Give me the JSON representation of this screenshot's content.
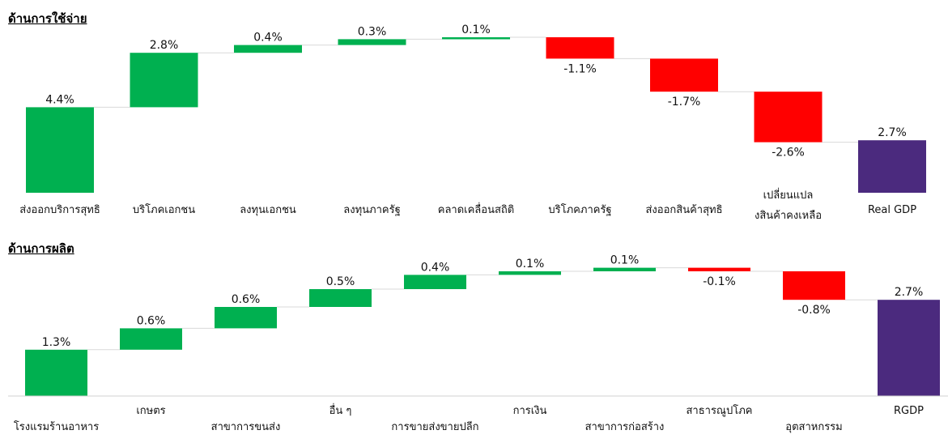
{
  "sections": [
    {
      "title": "ด้านการใช้จ่าย",
      "chart_data": {
        "type": "waterfall",
        "colors": {
          "increase": "#00B050",
          "decrease": "#FF0000",
          "total": "#4B2A7E"
        },
        "categories": [
          "ส่งออกบริการสุทธิ",
          "บริโภคเอกชน",
          "ลงทุนเอกชน",
          "ลงทุนภาครัฐ",
          "คลาดเคลื่อนสถิติ",
          "บริโภคภาครัฐ",
          "ส่งออกสินค้าสุทธิ",
          "เปลี่ยนแปลงสินค้าคงเหลือ",
          "Real GDP"
        ],
        "values": [
          4.4,
          2.8,
          0.4,
          0.3,
          0.1,
          -1.1,
          -1.7,
          -2.6,
          2.7
        ],
        "labels": [
          "4.4%",
          "2.8%",
          "0.4%",
          "0.3%",
          "0.1%",
          "-1.1%",
          "-1.7%",
          "-2.6%",
          "2.7%"
        ],
        "kinds": [
          "increase",
          "increase",
          "increase",
          "increase",
          "increase",
          "decrease",
          "decrease",
          "decrease",
          "total"
        ]
      }
    },
    {
      "title": "ด้านการผลิต",
      "chart_data": {
        "type": "waterfall",
        "colors": {
          "increase": "#00B050",
          "decrease": "#FF0000",
          "total": "#4B2A7E"
        },
        "categories": [
          "โรงแรมร้านอาหาร",
          "เกษตร",
          "สาขาการขนส่ง",
          "อื่น ๆ",
          "การขายส่งขายปลีก",
          "การเงิน",
          "สาขาการก่อสร้าง",
          "สาธารณูปโภค",
          "อุตสาหกรรม",
          "RGDP"
        ],
        "values": [
          1.3,
          0.6,
          0.6,
          0.5,
          0.4,
          0.1,
          0.1,
          -0.1,
          -0.8,
          2.7
        ],
        "labels": [
          "1.3%",
          "0.6%",
          "0.6%",
          "0.5%",
          "0.4%",
          "0.1%",
          "0.1%",
          "-0.1%",
          "-0.8%",
          "2.7%"
        ],
        "kinds": [
          "increase",
          "increase",
          "increase",
          "increase",
          "increase",
          "increase",
          "increase",
          "decrease",
          "decrease",
          "total"
        ]
      }
    }
  ]
}
